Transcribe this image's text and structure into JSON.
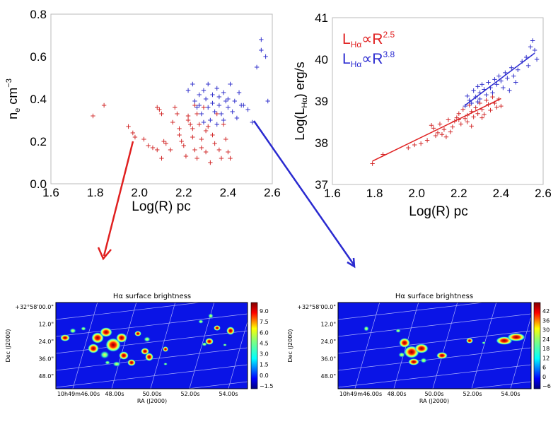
{
  "chart_data": [
    {
      "type": "scatter",
      "xlabel": "Log(R) pc",
      "ylabel_main": "n",
      "ylabel_sub": "e",
      "ylabel_unit": " cm",
      "ylabel_exp": "−3",
      "xlim": [
        1.6,
        2.6
      ],
      "ylim": [
        0.0,
        0.8
      ],
      "xticks": [
        "1.6",
        "1.8",
        "2.0",
        "2.2",
        "2.4",
        "2.6"
      ],
      "yticks": [
        "0.0",
        "0.2",
        "0.4",
        "0.6",
        "0.8"
      ],
      "series": [
        {
          "color": "#d22b2b",
          "points": [
            [
              1.79,
              0.32
            ],
            [
              1.84,
              0.37
            ],
            [
              1.95,
              0.27
            ],
            [
              1.97,
              0.24
            ],
            [
              1.98,
              0.22
            ],
            [
              2.02,
              0.21
            ],
            [
              2.04,
              0.18
            ],
            [
              2.06,
              0.17
            ],
            [
              2.08,
              0.16
            ],
            [
              2.1,
              0.12
            ],
            [
              2.08,
              0.36
            ],
            [
              2.09,
              0.35
            ],
            [
              2.1,
              0.33
            ],
            [
              2.11,
              0.2
            ],
            [
              2.12,
              0.19
            ],
            [
              2.14,
              0.16
            ],
            [
              2.15,
              0.29
            ],
            [
              2.16,
              0.36
            ],
            [
              2.17,
              0.33
            ],
            [
              2.18,
              0.23
            ],
            [
              2.19,
              0.2
            ],
            [
              2.2,
              0.18
            ],
            [
              2.21,
              0.13
            ],
            [
              2.22,
              0.32
            ],
            [
              2.23,
              0.28
            ],
            [
              2.24,
              0.26
            ],
            [
              2.24,
              0.22
            ],
            [
              2.25,
              0.16
            ],
            [
              2.26,
              0.33
            ],
            [
              2.26,
              0.12
            ],
            [
              2.27,
              0.28
            ],
            [
              2.28,
              0.21
            ],
            [
              2.28,
              0.17
            ],
            [
              2.29,
              0.36
            ],
            [
              2.3,
              0.25
            ],
            [
              2.3,
              0.15
            ],
            [
              2.31,
              0.27
            ],
            [
              2.32,
              0.1
            ],
            [
              2.33,
              0.23
            ],
            [
              2.34,
              0.19
            ],
            [
              2.35,
              0.33
            ],
            [
              2.36,
              0.16
            ],
            [
              2.37,
              0.12
            ],
            [
              2.38,
              0.28
            ],
            [
              2.39,
              0.21
            ],
            [
              2.4,
              0.15
            ],
            [
              2.41,
              0.12
            ],
            [
              2.25,
              0.37
            ],
            [
              2.22,
              0.3
            ],
            [
              2.18,
              0.26
            ]
          ]
        },
        {
          "color": "#3333cc",
          "points": [
            [
              2.22,
              0.44
            ],
            [
              2.24,
              0.47
            ],
            [
              2.25,
              0.39
            ],
            [
              2.26,
              0.36
            ],
            [
              2.27,
              0.42
            ],
            [
              2.28,
              0.33
            ],
            [
              2.29,
              0.44
            ],
            [
              2.3,
              0.4
            ],
            [
              2.31,
              0.47
            ],
            [
              2.31,
              0.36
            ],
            [
              2.32,
              0.3
            ],
            [
              2.33,
              0.42
            ],
            [
              2.33,
              0.38
            ],
            [
              2.34,
              0.34
            ],
            [
              2.35,
              0.45
            ],
            [
              2.36,
              0.41
            ],
            [
              2.36,
              0.37
            ],
            [
              2.37,
              0.33
            ],
            [
              2.38,
              0.43
            ],
            [
              2.38,
              0.3
            ],
            [
              2.39,
              0.39
            ],
            [
              2.4,
              0.36
            ],
            [
              2.41,
              0.47
            ],
            [
              2.42,
              0.34
            ],
            [
              2.43,
              0.39
            ],
            [
              2.44,
              0.31
            ],
            [
              2.45,
              0.43
            ],
            [
              2.47,
              0.37
            ],
            [
              2.49,
              0.35
            ],
            [
              2.51,
              0.29
            ],
            [
              2.53,
              0.55
            ],
            [
              2.55,
              0.63
            ],
            [
              2.55,
              0.68
            ],
            [
              2.57,
              0.6
            ],
            [
              2.58,
              0.39
            ],
            [
              2.46,
              0.37
            ],
            [
              2.29,
              0.29
            ],
            [
              2.27,
              0.37
            ],
            [
              2.35,
              0.28
            ],
            [
              2.4,
              0.4
            ]
          ]
        }
      ]
    },
    {
      "type": "scatter",
      "xlabel": "Log(R) pc",
      "ylabel_main": "Log(L",
      "ylabel_sub": "Hα",
      "ylabel_unit": ") erg/s",
      "xlim": [
        1.6,
        2.6
      ],
      "ylim": [
        37,
        41
      ],
      "xticks": [
        "1.6",
        "1.8",
        "2.0",
        "2.2",
        "2.4",
        "2.6"
      ],
      "yticks": [
        "37",
        "38",
        "39",
        "40",
        "41"
      ],
      "legend": [
        {
          "text_main": "L",
          "text_sub": "Hα",
          "text_mid": "∝R",
          "text_exp": "2.5",
          "color": "#e02020"
        },
        {
          "text_main": "L",
          "text_sub": "Hα",
          "text_mid": "∝R",
          "text_exp": "3.8",
          "color": "#2a2ad0"
        }
      ],
      "fit_lines": [
        {
          "color": "#e02020",
          "x": [
            1.79,
            2.4
          ],
          "y": [
            37.56,
            39.06
          ]
        },
        {
          "color": "#2a2ad0",
          "x": [
            2.23,
            2.56
          ],
          "y": [
            38.9,
            40.15
          ]
        }
      ],
      "series": [
        {
          "color": "#d22b2b",
          "points": [
            [
              1.79,
              37.5
            ],
            [
              1.84,
              37.72
            ],
            [
              1.96,
              37.88
            ],
            [
              1.99,
              37.95
            ],
            [
              2.02,
              37.98
            ],
            [
              2.05,
              38.06
            ],
            [
              2.07,
              38.42
            ],
            [
              2.08,
              38.35
            ],
            [
              2.09,
              38.17
            ],
            [
              2.1,
              38.24
            ],
            [
              2.11,
              38.45
            ],
            [
              2.13,
              38.32
            ],
            [
              2.14,
              38.14
            ],
            [
              2.15,
              38.55
            ],
            [
              2.16,
              38.26
            ],
            [
              2.17,
              38.38
            ],
            [
              2.18,
              38.52
            ],
            [
              2.19,
              38.6
            ],
            [
              2.2,
              38.7
            ],
            [
              2.21,
              38.45
            ],
            [
              2.22,
              38.8
            ],
            [
              2.23,
              38.58
            ],
            [
              2.24,
              38.66
            ],
            [
              2.24,
              38.5
            ],
            [
              2.25,
              38.9
            ],
            [
              2.26,
              38.75
            ],
            [
              2.27,
              38.62
            ],
            [
              2.28,
              38.84
            ],
            [
              2.29,
              38.7
            ],
            [
              2.3,
              38.95
            ],
            [
              2.31,
              38.8
            ],
            [
              2.32,
              38.68
            ],
            [
              2.33,
              39.02
            ],
            [
              2.34,
              38.92
            ],
            [
              2.35,
              38.78
            ],
            [
              2.36,
              39.1
            ],
            [
              2.37,
              38.95
            ],
            [
              2.38,
              38.85
            ],
            [
              2.39,
              39.05
            ],
            [
              2.4,
              38.88
            ],
            [
              2.12,
              38.2
            ],
            [
              2.2,
              38.55
            ],
            [
              2.26,
              38.4
            ],
            [
              2.31,
              38.6
            ]
          ]
        },
        {
          "color": "#3333cc",
          "points": [
            [
              2.23,
              38.88
            ],
            [
              2.24,
              39.12
            ],
            [
              2.25,
              39.02
            ],
            [
              2.26,
              38.95
            ],
            [
              2.27,
              39.25
            ],
            [
              2.28,
              39.1
            ],
            [
              2.29,
              39.35
            ],
            [
              2.3,
              39.05
            ],
            [
              2.3,
              39.2
            ],
            [
              2.31,
              39.4
            ],
            [
              2.32,
              39.28
            ],
            [
              2.33,
              39.15
            ],
            [
              2.34,
              39.45
            ],
            [
              2.35,
              39.32
            ],
            [
              2.36,
              39.2
            ],
            [
              2.37,
              39.52
            ],
            [
              2.38,
              39.4
            ],
            [
              2.39,
              39.6
            ],
            [
              2.4,
              39.48
            ],
            [
              2.41,
              39.32
            ],
            [
              2.42,
              39.68
            ],
            [
              2.43,
              39.55
            ],
            [
              2.44,
              39.25
            ],
            [
              2.45,
              39.8
            ],
            [
              2.46,
              39.6
            ],
            [
              2.48,
              39.75
            ],
            [
              2.5,
              39.95
            ],
            [
              2.52,
              40.05
            ],
            [
              2.54,
              40.3
            ],
            [
              2.55,
              40.45
            ],
            [
              2.56,
              40.22
            ],
            [
              2.57,
              40.0
            ],
            [
              2.53,
              39.85
            ],
            [
              2.47,
              39.45
            ],
            [
              2.29,
              38.98
            ]
          ]
        }
      ]
    }
  ],
  "maps": [
    {
      "title": "Hα surface brightness",
      "dec_label": "Dec (J2000)",
      "ra_label": "RA (J2000)",
      "dec_ticks": [
        "+32°58'00.0\"",
        "12.0\"",
        "24.0\"",
        "36.0\"",
        "48.0\""
      ],
      "ra_ticks": [
        "10h49m46.00s",
        "48.00s",
        "50.00s",
        "52.00s",
        "54.00s"
      ],
      "colorbar_ticks": [
        "9.0",
        "7.5",
        "6.0",
        "4.5",
        "3.0",
        "1.5",
        "0.0",
        "−1.5"
      ]
    },
    {
      "title": "Hα surface brightness",
      "dec_label": "Dec (J2000)",
      "ra_label": "RA (J2000)",
      "dec_ticks": [
        "+32°58'00.0\"",
        "12.0\"",
        "24.0\"",
        "36.0\"",
        "48.0\""
      ],
      "ra_ticks": [
        "10h49m46.00s",
        "48.00s",
        "50.00s",
        "52.00s",
        "54.00s"
      ],
      "colorbar_ticks": [
        "42",
        "36",
        "30",
        "24",
        "18",
        "12",
        "6",
        "0",
        "−6"
      ]
    }
  ],
  "colors": {
    "red_arrow": "#e02020",
    "blue_arrow": "#2a2ad0",
    "map_bg": "#0a14e6"
  }
}
